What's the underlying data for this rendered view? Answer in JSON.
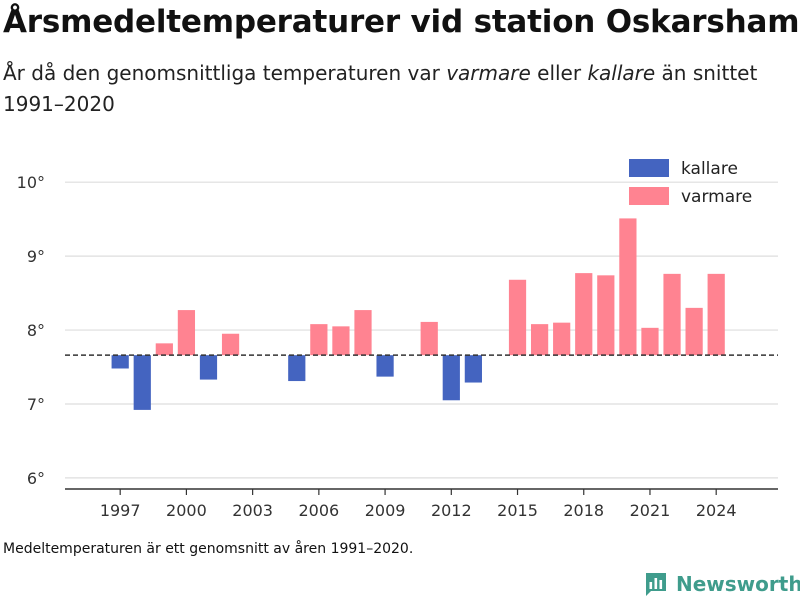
{
  "header": {
    "title": "Årsmedeltemperaturer vid station Oskarshamn",
    "subtitle_pre": "År då den genomsnittliga temperaturen var ",
    "subtitle_warm": "varmare",
    "subtitle_mid": " eller ",
    "subtitle_cold": "kallare",
    "subtitle_post": " än snittet 1991–2020"
  },
  "footer": {
    "note": "Medeltemperaturen är ett genomsnitt av åren 1991–2020.",
    "brand": "Newsworthy"
  },
  "chart_data": {
    "type": "bar",
    "title": "Årsmedeltemperaturer vid station Oskarshamn",
    "baseline": 7.66,
    "ylim": [
      5.85,
      10.3
    ],
    "xlim": [
      1994.5,
      2026.8
    ],
    "yticks": [
      6,
      7,
      8,
      9,
      10
    ],
    "ytick_labels": [
      "6°",
      "7°",
      "8°",
      "9°",
      "10°"
    ],
    "xticks": [
      1997,
      2000,
      2003,
      2006,
      2009,
      2012,
      2015,
      2018,
      2021,
      2024
    ],
    "xtick_labels": [
      "1997",
      "2000",
      "2003",
      "2006",
      "2009",
      "2012",
      "2015",
      "2018",
      "2021",
      "2024"
    ],
    "grid": true,
    "legend_position": "top-right",
    "legend": [
      {
        "label": "kallare",
        "color": "#4464c0"
      },
      {
        "label": "varmare",
        "color": "#ff8391"
      }
    ],
    "colors": {
      "kallare": "#4464c0",
      "varmare": "#ff8391",
      "grid": "#dddddd",
      "baseline": "#333333"
    },
    "years": [
      1997,
      1998,
      1999,
      2000,
      2001,
      2002,
      2005,
      2006,
      2007,
      2008,
      2009,
      2011,
      2012,
      2013,
      2015,
      2016,
      2017,
      2018,
      2019,
      2020,
      2021,
      2022,
      2023,
      2024
    ],
    "values": [
      7.48,
      6.92,
      7.82,
      8.27,
      7.33,
      7.95,
      7.31,
      8.08,
      8.05,
      8.27,
      7.37,
      8.11,
      7.05,
      7.29,
      8.68,
      8.08,
      8.1,
      8.77,
      8.74,
      9.51,
      8.03,
      8.76,
      8.3,
      8.76
    ]
  }
}
